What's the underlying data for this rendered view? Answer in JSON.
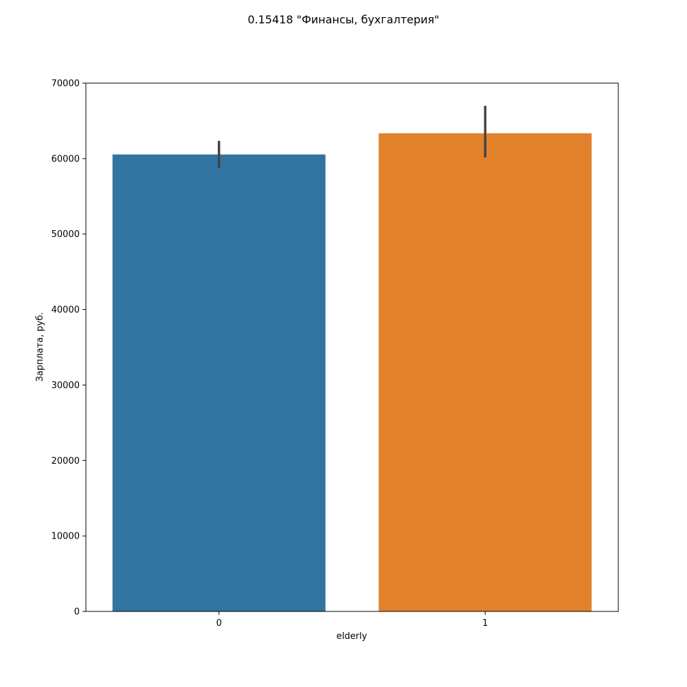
{
  "chart_data": {
    "type": "bar",
    "title": "0.15418 \"Финансы, бухгалтерия\"",
    "xlabel": "elderly",
    "ylabel": "Зарплата, руб.",
    "categories": [
      "0",
      "1"
    ],
    "values": [
      60550,
      63350
    ],
    "error_bars": [
      [
        58750,
        62350
      ],
      [
        60150,
        67000
      ]
    ],
    "colors": [
      "#3274a1",
      "#e1812c"
    ],
    "errorbar_color": "#444444",
    "ylim": [
      0,
      70000
    ],
    "yticks": [
      0,
      10000,
      20000,
      30000,
      40000,
      50000,
      60000,
      70000
    ],
    "ytick_labels": [
      "0",
      "10000",
      "20000",
      "30000",
      "40000",
      "50000",
      "60000",
      "70000"
    ],
    "grid": false,
    "legend": "none"
  }
}
